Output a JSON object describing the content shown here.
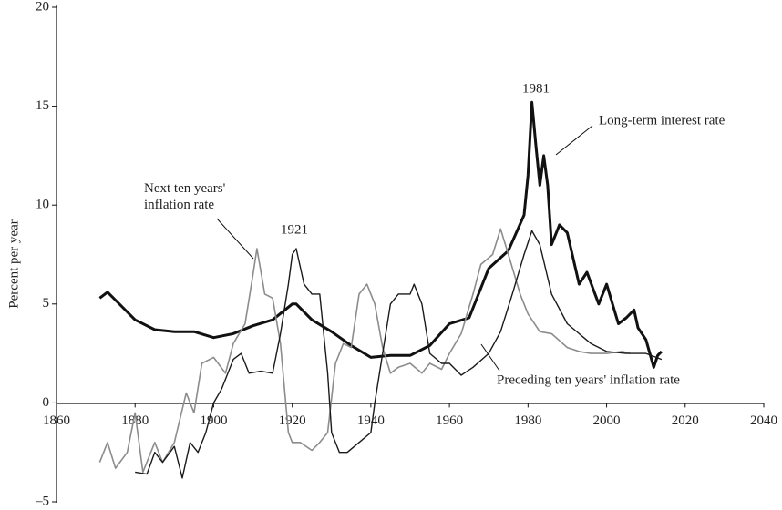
{
  "chart_data": {
    "type": "line",
    "y_label": "Percent per year",
    "xlim": [
      1860,
      2040
    ],
    "ylim": [
      -5,
      20
    ],
    "xticks": [
      1860,
      1880,
      1900,
      1920,
      1940,
      1960,
      1980,
      2000,
      2020,
      2040
    ],
    "yticks": [
      20,
      15,
      10,
      5,
      0,
      {
        "value": -5,
        "label": "–5"
      }
    ],
    "annotations": [
      "1981",
      "1921"
    ],
    "series": [
      {
        "name": "Long-term interest rate",
        "color": "#111111",
        "width": 3,
        "x": [
          1871,
          1873,
          1875,
          1880,
          1885,
          1890,
          1895,
          1900,
          1905,
          1910,
          1915,
          1920,
          1921,
          1925,
          1930,
          1935,
          1940,
          1945,
          1950,
          1955,
          1960,
          1965,
          1970,
          1975,
          1979,
          1980,
          1981,
          1982,
          1983,
          1984,
          1985,
          1986,
          1987,
          1988,
          1990,
          1993,
          1995,
          1998,
          2000,
          2003,
          2005,
          2007,
          2008,
          2010,
          2012,
          2013,
          2014
        ],
        "values": [
          5.3,
          5.6,
          5.2,
          4.2,
          3.7,
          3.6,
          3.6,
          3.3,
          3.5,
          3.9,
          4.2,
          5.0,
          5.0,
          4.2,
          3.6,
          2.9,
          2.3,
          2.4,
          2.4,
          2.9,
          4.0,
          4.3,
          6.8,
          7.7,
          9.5,
          11.5,
          15.2,
          13.0,
          11.0,
          12.5,
          11.0,
          8.0,
          8.5,
          9.0,
          8.6,
          6.0,
          6.6,
          5.0,
          6.0,
          4.0,
          4.3,
          4.7,
          3.8,
          3.2,
          1.8,
          2.4,
          2.6
        ]
      },
      {
        "name": "Next ten years' inflation rate",
        "color": "#8c8c8c",
        "width": 1.6,
        "x": [
          1871,
          1873,
          1875,
          1878,
          1880,
          1882,
          1885,
          1887,
          1890,
          1893,
          1895,
          1897,
          1900,
          1903,
          1905,
          1908,
          1910,
          1911,
          1913,
          1915,
          1917,
          1919,
          1920,
          1922,
          1925,
          1927,
          1929,
          1931,
          1933,
          1935,
          1937,
          1939,
          1941,
          1943,
          1945,
          1947,
          1950,
          1953,
          1955,
          1958,
          1960,
          1963,
          1966,
          1968,
          1971,
          1973,
          1975,
          1978,
          1980,
          1983,
          1986,
          1990,
          1993,
          1996,
          2000,
          2004,
          2006
        ],
        "values": [
          -3.0,
          -2.0,
          -3.3,
          -2.5,
          -0.5,
          -3.5,
          -2.0,
          -3.0,
          -2.0,
          0.5,
          -0.5,
          2.0,
          2.3,
          1.5,
          3.0,
          4.0,
          6.5,
          7.8,
          5.5,
          5.3,
          3.0,
          -1.5,
          -2.0,
          -2.0,
          -2.4,
          -2.0,
          -1.5,
          2.0,
          3.0,
          2.8,
          5.5,
          6.0,
          5.0,
          2.8,
          1.5,
          1.8,
          2.0,
          1.5,
          2.0,
          1.7,
          2.5,
          3.5,
          5.5,
          7.0,
          7.5,
          8.8,
          7.5,
          5.5,
          4.5,
          3.6,
          3.5,
          2.8,
          2.6,
          2.5,
          2.5,
          2.6,
          2.5
        ]
      },
      {
        "name": "Preceding ten years' inflation rate",
        "color": "#1a1a1a",
        "width": 1.4,
        "x": [
          1880,
          1883,
          1885,
          1887,
          1890,
          1892,
          1894,
          1896,
          1898,
          1900,
          1902,
          1905,
          1907,
          1909,
          1912,
          1915,
          1917,
          1919,
          1920,
          1921,
          1923,
          1925,
          1927,
          1929,
          1930,
          1932,
          1934,
          1937,
          1940,
          1941,
          1943,
          1945,
          1947,
          1950,
          1951,
          1953,
          1955,
          1958,
          1960,
          1963,
          1966,
          1970,
          1973,
          1976,
          1979,
          1981,
          1983,
          1986,
          1990,
          1993,
          1996,
          2000,
          2005,
          2010,
          2014
        ],
        "values": [
          -3.5,
          -3.6,
          -2.5,
          -3.0,
          -2.2,
          -3.8,
          -2.0,
          -2.5,
          -1.5,
          0,
          0.7,
          2.2,
          2.5,
          1.5,
          1.6,
          1.5,
          3.5,
          6.0,
          7.5,
          7.8,
          6.0,
          5.5,
          5.5,
          1.5,
          -1.5,
          -2.5,
          -2.5,
          -2.0,
          -1.5,
          0,
          2.5,
          5.0,
          5.5,
          5.5,
          6.0,
          5.0,
          2.5,
          2.0,
          2.0,
          1.4,
          1.8,
          2.5,
          3.6,
          5.5,
          7.5,
          8.7,
          8.0,
          5.5,
          4.0,
          3.5,
          3.0,
          2.6,
          2.5,
          2.5,
          2.2
        ]
      }
    ]
  }
}
